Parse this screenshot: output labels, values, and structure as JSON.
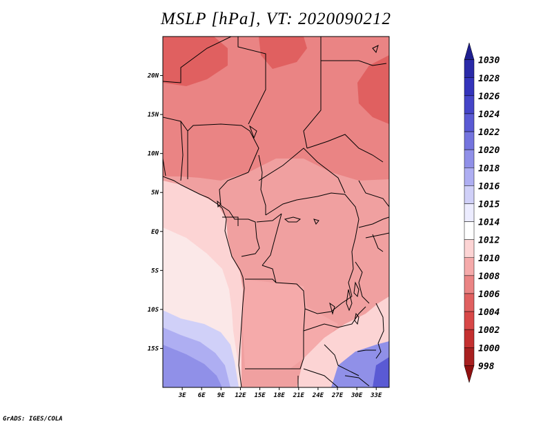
{
  "title": "MSLP [hPa], VT: 2020090212",
  "footer": "GrADS: IGES/COLA",
  "map": {
    "lon_range": [
      0,
      35
    ],
    "lat_range": [
      -20,
      25
    ],
    "lon_ticks": [
      {
        "value": 3,
        "label": "3E"
      },
      {
        "value": 6,
        "label": "6E"
      },
      {
        "value": 9,
        "label": "9E"
      },
      {
        "value": 12,
        "label": "12E"
      },
      {
        "value": 15,
        "label": "15E"
      },
      {
        "value": 18,
        "label": "18E"
      },
      {
        "value": 21,
        "label": "21E"
      },
      {
        "value": 24,
        "label": "24E"
      },
      {
        "value": 27,
        "label": "27E"
      },
      {
        "value": 30,
        "label": "30E"
      },
      {
        "value": 33,
        "label": "33E"
      }
    ],
    "lat_ticks": [
      {
        "value": 20,
        "label": "20N"
      },
      {
        "value": 15,
        "label": "15N"
      },
      {
        "value": 10,
        "label": "10N"
      },
      {
        "value": 5,
        "label": "5N"
      },
      {
        "value": 0,
        "label": "EQ"
      },
      {
        "value": -5,
        "label": "5S"
      },
      {
        "value": -10,
        "label": "10S"
      },
      {
        "value": -15,
        "label": "15S"
      }
    ]
  },
  "colorbar": {
    "labels": [
      "1030",
      "1028",
      "1026",
      "1024",
      "1022",
      "1020",
      "1018",
      "1016",
      "1015",
      "1014",
      "1012",
      "1010",
      "1008",
      "1006",
      "1004",
      "1002",
      "1000",
      "998"
    ],
    "colors": [
      "#1f1f8f",
      "#2a2aa8",
      "#3434bb",
      "#4545c8",
      "#5a5ad4",
      "#7474de",
      "#9090e8",
      "#aeaef2",
      "#d0d0f8",
      "#ececff",
      "#ffffff",
      "#fcd4d4",
      "#f5aaaa",
      "#ea8484",
      "#e06060",
      "#d84848",
      "#c43030",
      "#a82020",
      "#901010"
    ]
  },
  "regions": [
    {
      "name": "north-sahara-deep-low",
      "color": "#e06060"
    },
    {
      "name": "sahel-low",
      "color": "#ea8484"
    },
    {
      "name": "central-africa",
      "color": "#f0a0a0"
    },
    {
      "name": "angola-zambia",
      "color": "#f5aaaa"
    },
    {
      "name": "gulf-of-guinea",
      "color": "#fcd4d4"
    },
    {
      "name": "south-atlantic-edge",
      "color": "#fbe8e8"
    },
    {
      "name": "south-atlantic-high-1",
      "color": "#d0d0f8"
    },
    {
      "name": "south-atlantic-high-2",
      "color": "#aeaef2"
    },
    {
      "name": "south-atlantic-high-3",
      "color": "#9090e8"
    },
    {
      "name": "mozambique-high",
      "color": "#9090e8"
    },
    {
      "name": "mozambique-high-core",
      "color": "#5a5ad4"
    }
  ]
}
